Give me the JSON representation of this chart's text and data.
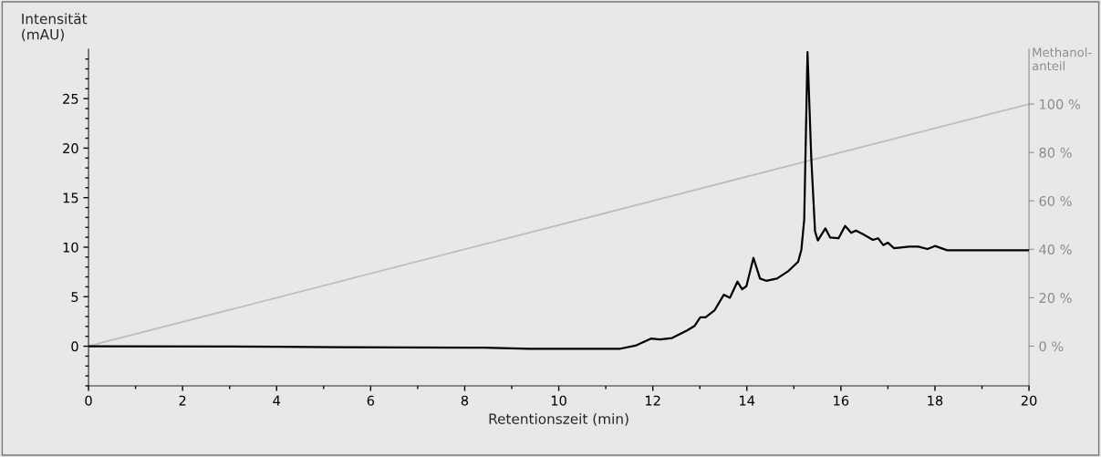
{
  "chart_data": {
    "type": "line",
    "xlabel": "Retentionszeit (min)",
    "ylabel": "Intensität\n(mAU)",
    "y2label": "Methanol-\nanteil",
    "xlim": [
      0,
      20
    ],
    "ylim": [
      -4,
      30
    ],
    "y2lim": [
      -16.4,
      122.7
    ],
    "xticks": [
      0,
      {
        "value": 1,
        "label": null
      },
      2,
      {
        "value": 3,
        "label": null
      },
      4,
      {
        "value": 5,
        "label": null
      },
      6,
      {
        "value": 7,
        "label": null
      },
      8,
      {
        "value": 9,
        "label": null
      },
      10,
      {
        "value": 11,
        "label": null
      },
      12,
      {
        "value": 13,
        "label": null
      },
      14,
      {
        "value": 15,
        "label": null
      },
      16,
      {
        "value": 17,
        "label": null
      },
      18,
      {
        "value": 19,
        "label": null
      },
      20
    ],
    "yticks": [
      {
        "value": -4,
        "label": null
      },
      {
        "value": -3,
        "label": null
      },
      {
        "value": -2,
        "label": null
      },
      {
        "value": -1,
        "label": null
      },
      0,
      {
        "value": 1,
        "label": null
      },
      {
        "value": 2,
        "label": null
      },
      {
        "value": 3,
        "label": null
      },
      {
        "value": 4,
        "label": null
      },
      5,
      {
        "value": 6,
        "label": null
      },
      {
        "value": 7,
        "label": null
      },
      {
        "value": 8,
        "label": null
      },
      {
        "value": 9,
        "label": null
      },
      10,
      {
        "value": 11,
        "label": null
      },
      {
        "value": 12,
        "label": null
      },
      {
        "value": 13,
        "label": null
      },
      {
        "value": 14,
        "label": null
      },
      15,
      {
        "value": 16,
        "label": null
      },
      {
        "value": 17,
        "label": null
      },
      {
        "value": 18,
        "label": null
      },
      {
        "value": 19,
        "label": null
      },
      20,
      {
        "value": 21,
        "label": null
      },
      {
        "value": 22,
        "label": null
      },
      {
        "value": 23,
        "label": null
      },
      {
        "value": 24,
        "label": null
      },
      25,
      {
        "value": 26,
        "label": null
      },
      {
        "value": 27,
        "label": null
      },
      {
        "value": 28,
        "label": null
      },
      {
        "value": 29,
        "label": null
      }
    ],
    "y2ticks": [
      {
        "value": 0,
        "label": "0 %"
      },
      {
        "value": 20,
        "label": "20 %"
      },
      {
        "value": 40,
        "label": "40 %"
      },
      {
        "value": 60,
        "label": "60 %"
      },
      {
        "value": 80,
        "label": "80 %"
      },
      {
        "value": 100,
        "label": "100 %"
      }
    ],
    "grid": false,
    "legend": false,
    "marker": "none",
    "line_style": "solid",
    "series": [
      {
        "color": "#000000",
        "x": [
          0,
          4,
          5.3,
          8.4,
          9.37,
          11.31,
          11.63,
          11.96,
          12.15,
          12.41,
          12.73,
          12.89,
          13.01,
          13.12,
          13.31,
          13.51,
          13.64,
          13.8,
          13.9,
          13.99,
          14.14,
          14.28,
          14.41,
          14.64,
          14.87,
          15.09,
          15.16,
          15.22,
          15.29,
          15.37,
          15.45,
          15.51,
          15.67,
          15.77,
          15.95,
          16.09,
          16.22,
          16.32,
          16.48,
          16.68,
          16.79,
          16.9,
          17.0,
          17.13,
          17.45,
          17.65,
          17.84,
          18.0,
          18.26,
          20
        ],
        "values": [
          0,
          -0.05,
          -0.1,
          -0.15,
          -0.25,
          -0.25,
          0.06,
          0.77,
          0.68,
          0.83,
          1.6,
          2.06,
          2.92,
          2.92,
          3.6,
          5.2,
          4.89,
          6.52,
          5.75,
          6.06,
          8.92,
          6.83,
          6.61,
          6.83,
          7.54,
          8.52,
          9.75,
          12.8,
          29.7,
          19,
          11.6,
          10.67,
          11.9,
          10.98,
          10.9,
          12.15,
          11.44,
          11.68,
          11.28,
          10.73,
          10.9,
          10.21,
          10.45,
          9.9,
          10.06,
          10.06,
          9.81,
          10.12,
          9.69,
          9.69
        ]
      },
      {
        "color": "#bdbdbd",
        "axis": "y2",
        "x": [
          0,
          20
        ],
        "values": [
          0,
          100
        ]
      }
    ]
  }
}
